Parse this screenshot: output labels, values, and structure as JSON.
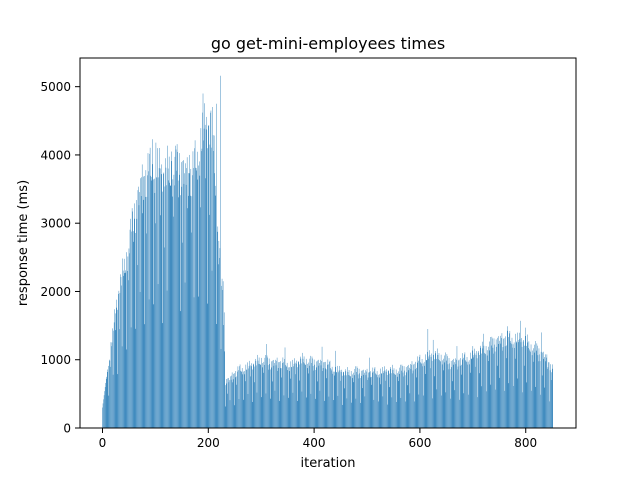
{
  "chart_data": {
    "type": "bar",
    "title": "go get-mini-employees times",
    "xlabel": "iteration",
    "ylabel": "response time (ms)",
    "xlim": [
      -42.5,
      895
    ],
    "ylim": [
      0,
      5420
    ],
    "xticks": [
      0,
      200,
      400,
      600,
      800
    ],
    "yticks": [
      0,
      1000,
      2000,
      3000,
      4000,
      5000
    ],
    "grid": false,
    "legend": "none",
    "color": "#1f77b4",
    "n_points": 852,
    "anchors": [
      [
        0,
        300
      ],
      [
        5,
        600
      ],
      [
        10,
        900
      ],
      [
        15,
        1150
      ],
      [
        20,
        1400
      ],
      [
        25,
        1700
      ],
      [
        30,
        1950
      ],
      [
        35,
        2150
      ],
      [
        40,
        2300
      ],
      [
        45,
        2500
      ],
      [
        50,
        2700
      ],
      [
        55,
        2900
      ],
      [
        60,
        3100
      ],
      [
        65,
        3300
      ],
      [
        70,
        3450
      ],
      [
        75,
        3550
      ],
      [
        80,
        3650
      ],
      [
        90,
        3750
      ],
      [
        100,
        3850
      ],
      [
        110,
        3700
      ],
      [
        120,
        3700
      ],
      [
        130,
        3800
      ],
      [
        140,
        3800
      ],
      [
        150,
        3800
      ],
      [
        160,
        3650
      ],
      [
        170,
        3700
      ],
      [
        180,
        4000
      ],
      [
        190,
        4300
      ],
      [
        200,
        4400
      ],
      [
        210,
        4200
      ],
      [
        215,
        3500
      ],
      [
        220,
        2800
      ],
      [
        225,
        2100
      ],
      [
        230,
        1600
      ],
      [
        232,
        700
      ],
      [
        240,
        700
      ],
      [
        250,
        800
      ],
      [
        260,
        850
      ],
      [
        270,
        880
      ],
      [
        280,
        900
      ],
      [
        300,
        1000
      ],
      [
        320,
        950
      ],
      [
        340,
        950
      ],
      [
        360,
        920
      ],
      [
        380,
        1000
      ],
      [
        400,
        950
      ],
      [
        420,
        950
      ],
      [
        440,
        850
      ],
      [
        460,
        800
      ],
      [
        480,
        830
      ],
      [
        500,
        800
      ],
      [
        520,
        820
      ],
      [
        540,
        830
      ],
      [
        560,
        840
      ],
      [
        580,
        880
      ],
      [
        600,
        980
      ],
      [
        620,
        1050
      ],
      [
        640,
        1050
      ],
      [
        660,
        950
      ],
      [
        680,
        1000
      ],
      [
        700,
        1050
      ],
      [
        720,
        1150
      ],
      [
        740,
        1250
      ],
      [
        760,
        1300
      ],
      [
        780,
        1300
      ],
      [
        800,
        1250
      ],
      [
        820,
        1150
      ],
      [
        840,
        1000
      ],
      [
        851,
        850
      ]
    ],
    "peaks": [
      [
        95,
        4230
      ],
      [
        101,
        4180
      ],
      [
        131,
        4050
      ],
      [
        139,
        4080
      ],
      [
        165,
        4000
      ],
      [
        190,
        4900
      ],
      [
        205,
        4650
      ],
      [
        215,
        4750
      ],
      [
        223,
        5160
      ],
      [
        228,
        2150
      ],
      [
        310,
        1230
      ],
      [
        345,
        1180
      ],
      [
        415,
        1190
      ],
      [
        440,
        1130
      ],
      [
        505,
        1030
      ],
      [
        615,
        1450
      ],
      [
        625,
        1290
      ],
      [
        670,
        1200
      ],
      [
        700,
        1200
      ],
      [
        720,
        1380
      ],
      [
        765,
        1490
      ],
      [
        790,
        1570
      ],
      [
        800,
        1470
      ],
      [
        830,
        1400
      ]
    ],
    "pattern": {
      "cycle_length": 17,
      "dips": [
        [
          3,
          0.52
        ],
        [
          8,
          0.9
        ],
        [
          12,
          0.46
        ],
        [
          15,
          0.78
        ]
      ]
    }
  }
}
